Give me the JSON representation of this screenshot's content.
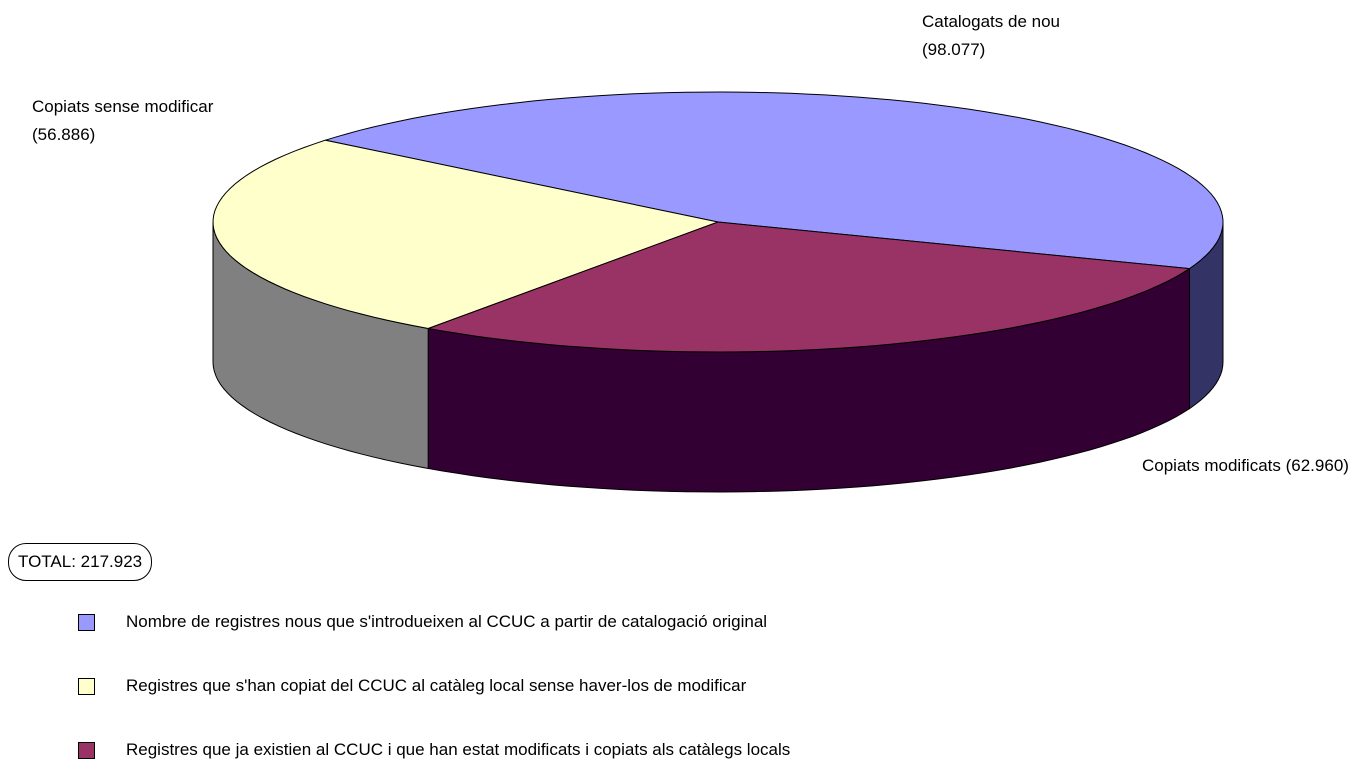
{
  "chart_data": {
    "type": "pie3d",
    "categories": [
      "Nombre de registres nous que s'introdueixen al CCUC a partir de catalogació original",
      "Registres que s'han copiat del CCUC al catàleg local sense haver-los de modificar",
      "Registres que ja existien al CCUC i que han estat modificats i copiats als catàlegs locals"
    ],
    "values": [
      98077,
      56886,
      62960
    ],
    "value_labels": [
      "Catalogats de nou (98.077)",
      "Copiats sense modificar (56.886)",
      "Copiats modificats (62.960)"
    ],
    "colors": [
      "#9999ff",
      "#ffffcc",
      "#993366"
    ],
    "side_colors": [
      "#333366",
      "#808080",
      "#330033"
    ],
    "annotation": "TOTAL: 217.923",
    "legend": "bottom-left"
  }
}
